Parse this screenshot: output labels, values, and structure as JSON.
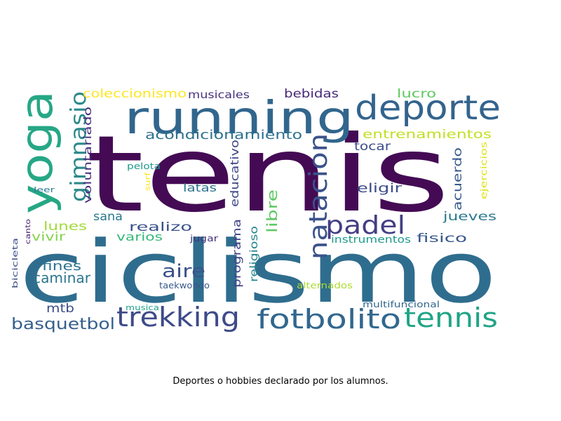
{
  "caption": "Deportes o hobbies declarado por los alumnos.",
  "colormap": "viridis",
  "words": [
    {
      "text": "tenis",
      "color": "#440b54"
    },
    {
      "text": "ciclismo",
      "color": "#2f6d8e"
    },
    {
      "text": "running",
      "color": "#31668d"
    },
    {
      "text": "deporte",
      "color": "#33648d"
    },
    {
      "text": "yoga",
      "color": "#26a785"
    },
    {
      "text": "gimnasio",
      "color": "#2c8a8b"
    },
    {
      "text": "natacion",
      "color": "#3b528b"
    },
    {
      "text": "padel",
      "color": "#433e85"
    },
    {
      "text": "trekking",
      "color": "#3e4a89"
    },
    {
      "text": "fotbolito",
      "color": "#31678e"
    },
    {
      "text": "tennis",
      "color": "#20a486"
    },
    {
      "text": "basquetbol",
      "color": "#355f8d"
    },
    {
      "text": "aire",
      "color": "#3b528b"
    },
    {
      "text": "caminar",
      "color": "#2b758e"
    },
    {
      "text": "fines",
      "color": "#2c728e"
    },
    {
      "text": "mtb",
      "color": "#3d4d8a"
    },
    {
      "text": "acondicionamiento",
      "color": "#2d708e"
    },
    {
      "text": "entrenamientos",
      "color": "#c2df23"
    },
    {
      "text": "coleccionismo",
      "color": "#fde725"
    },
    {
      "text": "musicales",
      "color": "#46327e"
    },
    {
      "text": "bebidas",
      "color": "#482878"
    },
    {
      "text": "lucro",
      "color": "#5ec962"
    },
    {
      "text": "tocar",
      "color": "#3d4d8a"
    },
    {
      "text": "eligir",
      "color": "#3e4c8a"
    },
    {
      "text": "acuerdo",
      "color": "#375a8c"
    },
    {
      "text": "jueves",
      "color": "#2a788e"
    },
    {
      "text": "fisico",
      "color": "#38588c"
    },
    {
      "text": "instrumentos",
      "color": "#1f9a8a"
    },
    {
      "text": "libre",
      "color": "#5ec962"
    },
    {
      "text": "programa",
      "color": "#414487"
    },
    {
      "text": "religioso",
      "color": "#25858e"
    },
    {
      "text": "educativo",
      "color": "#3f4788"
    },
    {
      "text": "latas",
      "color": "#2c728e"
    },
    {
      "text": "realizo",
      "color": "#3b528b"
    },
    {
      "text": "sana",
      "color": "#2a788e"
    },
    {
      "text": "lunes",
      "color": "#a2da37"
    },
    {
      "text": "vivir",
      "color": "#84d44b"
    },
    {
      "text": "varios",
      "color": "#37b878"
    },
    {
      "text": "voluntariado",
      "color": "#472d7b"
    },
    {
      "text": "pelota",
      "color": "#1f988b"
    },
    {
      "text": "surf",
      "color": "#fde725"
    },
    {
      "text": "leer",
      "color": "#2a788e"
    },
    {
      "text": "canto",
      "color": "#481f70"
    },
    {
      "text": "bicicleta",
      "color": "#3b528b"
    },
    {
      "text": "jugar",
      "color": "#46327e"
    },
    {
      "text": "taekwondo",
      "color": "#38588c"
    },
    {
      "text": "alternados",
      "color": "#addc30"
    },
    {
      "text": "musica",
      "color": "#1fa187"
    },
    {
      "text": "multifuncional",
      "color": "#31688e"
    },
    {
      "text": "ejercicios",
      "color": "#dde318"
    }
  ]
}
